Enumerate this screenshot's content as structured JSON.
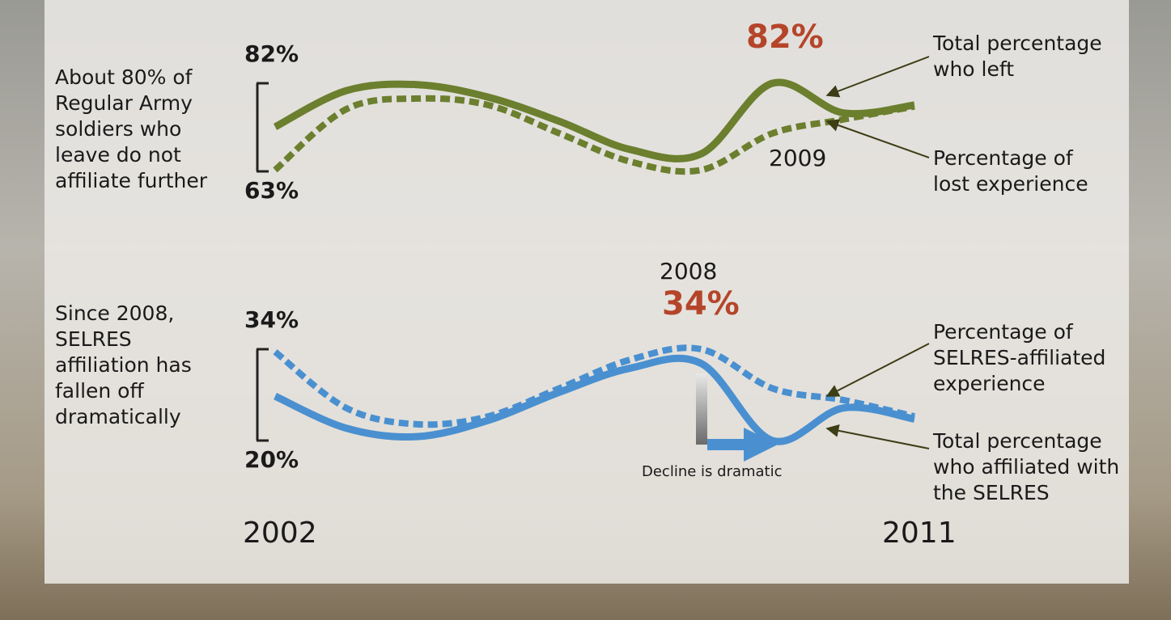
{
  "chart_data": [
    {
      "type": "line",
      "text": "About 80% of Regular Army soldiers who leave do not affiliate further",
      "ylim": [
        63,
        82
      ],
      "yticks": [
        {
          "value": 82,
          "label": "82%"
        },
        {
          "value": 63,
          "label": "63%"
        }
      ],
      "peak_label": {
        "year": "2009",
        "value_label": "82%"
      },
      "series": [
        {
          "name": "Total percentage who left",
          "color": "#6b7f2e",
          "dashed": false,
          "values": [
            72.6,
            80.4,
            81.7,
            79,
            73.8,
            67.7,
            66.8,
            82,
            75.6,
            77.3
          ]
        },
        {
          "name": "Percentage of lost experience",
          "color": "#6b7f2e",
          "dashed": true,
          "values": [
            63.3,
            76.4,
            78.7,
            77.3,
            71.2,
            65.1,
            63.3,
            71.2,
            74.2,
            77
          ]
        }
      ]
    },
    {
      "type": "line",
      "text": "Since 2008, SELRES affiliation has fallen off dramatically",
      "categories": [
        "2002",
        null,
        null,
        null,
        null,
        null,
        null,
        null,
        null,
        "2011"
      ],
      "ylim": [
        20,
        34
      ],
      "yticks": [
        {
          "value": 34,
          "label": "34%"
        },
        {
          "value": 20,
          "label": "20%"
        }
      ],
      "peak_label": {
        "year": "2008",
        "value_label": "34%"
      },
      "annotation": "Decline is dramatic",
      "series": [
        {
          "name": "Percentage of SELRES-affiliated experience",
          "color": "#4a90d0",
          "dashed": true,
          "values": [
            33.6,
            25,
            22.5,
            23.7,
            28,
            32.4,
            34,
            28,
            26.2,
            23.7
          ]
        },
        {
          "name": "Total percentage who affiliated with the SELRES",
          "color": "#4a90d0",
          "dashed": false,
          "values": [
            26.8,
            21.9,
            20.6,
            23.1,
            27.4,
            31.1,
            31.8,
            20,
            25,
            23.3
          ]
        }
      ]
    }
  ]
}
